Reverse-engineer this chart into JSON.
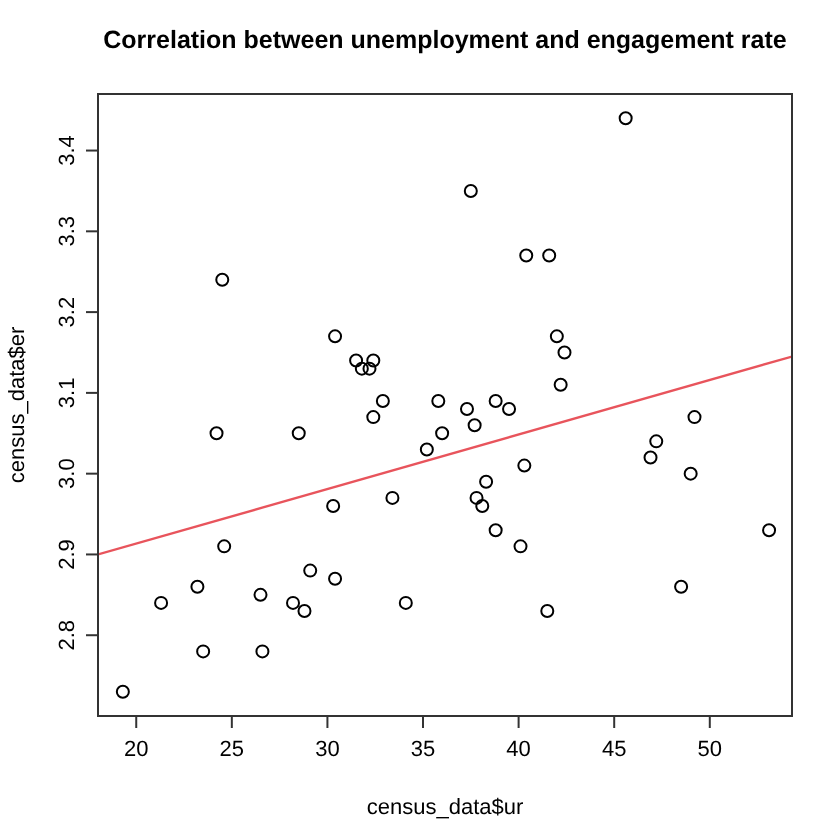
{
  "chart_data": {
    "type": "scatter",
    "title": "Correlation between unemployment and engagement rate",
    "xlabel": "census_data$ur",
    "ylabel": "census_data$er",
    "xlim": [
      18,
      54.3
    ],
    "ylim": [
      2.7,
      3.47
    ],
    "xticks": [
      20,
      25,
      30,
      35,
      40,
      45,
      50
    ],
    "yticks": [
      2.8,
      2.9,
      {
        "value": 3,
        "label": "3.0"
      },
      3.1,
      3.2,
      3.3,
      3.4
    ],
    "grid": false,
    "marker": "circle",
    "series": [
      {
        "color": "#000000",
        "x": [
          19.3,
          21.3,
          23.2,
          23.5,
          24.2,
          24.5,
          24.6,
          26.5,
          26.6,
          28.2,
          28.5,
          28.8,
          29.1,
          30.3,
          30.4,
          30.4,
          31.5,
          31.8,
          32.2,
          32.4,
          32.4,
          32.9,
          33.4,
          34.1,
          35.2,
          35.8,
          36.0,
          37.3,
          37.5,
          37.7,
          37.8,
          38.1,
          38.3,
          38.8,
          38.8,
          39.5,
          40.1,
          40.3,
          40.4,
          41.5,
          41.6,
          42.0,
          42.2,
          42.4,
          45.6,
          46.9,
          47.2,
          48.5,
          49.0,
          49.2,
          53.1
        ],
        "values": [
          2.73,
          2.84,
          2.86,
          2.78,
          3.05,
          3.24,
          2.91,
          2.85,
          2.78,
          2.84,
          3.05,
          2.83,
          2.88,
          2.96,
          2.87,
          3.17,
          3.14,
          3.13,
          3.13,
          3.14,
          3.07,
          3.09,
          2.97,
          2.84,
          3.03,
          3.09,
          3.05,
          3.08,
          3.35,
          3.06,
          2.97,
          2.96,
          2.99,
          3.09,
          2.93,
          3.08,
          2.91,
          3.01,
          3.27,
          2.83,
          3.27,
          3.17,
          3.11,
          3.15,
          3.44,
          3.02,
          3.04,
          2.86,
          3.0,
          3.07,
          2.93
        ]
      },
      {
        "type": "line",
        "color": "#e8545c",
        "marker": "none",
        "line_style": "solid",
        "x": [
          18,
          54.3
        ],
        "values": [
          2.9,
          3.145
        ]
      }
    ]
  }
}
